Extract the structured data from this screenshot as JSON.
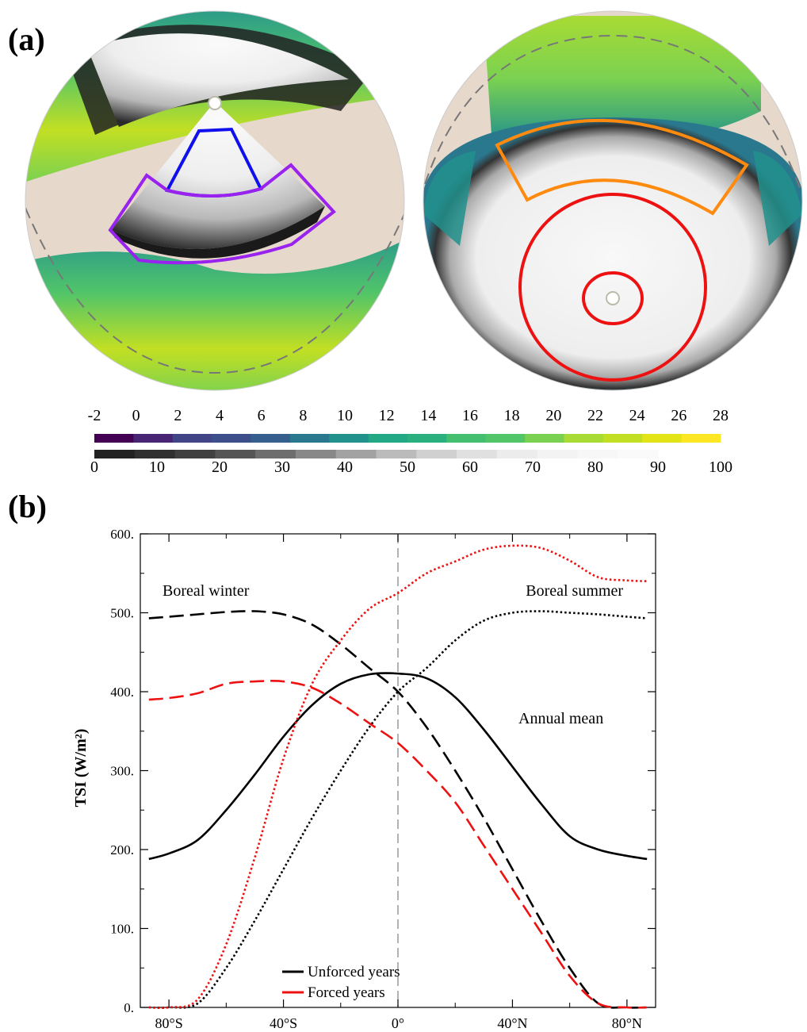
{
  "panel_a": {
    "label": "(a)",
    "colorbar_top": {
      "labels": [
        "-2",
        "0",
        "2",
        "4",
        "6",
        "8",
        "10",
        "12",
        "14",
        "16",
        "18",
        "20",
        "22",
        "24",
        "26",
        "28"
      ],
      "colors": [
        "#440154",
        "#482475",
        "#414487",
        "#3d4f8a",
        "#355f8d",
        "#2a788e",
        "#21918c",
        "#22a884",
        "#2ab07f",
        "#44bf70",
        "#52c569",
        "#7ad151",
        "#a8db34",
        "#c2df23",
        "#e2e418",
        "#fde725"
      ]
    },
    "colorbar_bottom": {
      "labels": [
        "0",
        "10",
        "20",
        "30",
        "40",
        "50",
        "60",
        "70",
        "80",
        "90",
        "100"
      ],
      "colors": [
        "#222222",
        "#303030",
        "#404040",
        "#555555",
        "#6e6e6e",
        "#888888",
        "#a2a2a2",
        "#bbbbbb",
        "#d0d0d0",
        "#e0e0e0",
        "#ececec",
        "#f3f3f3",
        "#f7f7f7",
        "#fafafa"
      ]
    },
    "land_color": "#e6d8cb",
    "box_colors": {
      "blue": "#1010ee",
      "purple": "#9922ee",
      "orange": "#ff8a10",
      "red": "#ee1111"
    }
  },
  "panel_b": {
    "label": "(b)",
    "annotations": {
      "winter": "Boreal winter",
      "summer": "Boreal summer",
      "annual": "Annual mean"
    },
    "legend": [
      {
        "label": "Unforced years",
        "color": "#000000"
      },
      {
        "label": "Forced years",
        "color": "#ee1111"
      }
    ]
  },
  "chart_data": {
    "type": "line",
    "title": "",
    "xlabel": "",
    "ylabel": "TSI (W/m²)",
    "xlim": [
      -90,
      90
    ],
    "ylim": [
      0,
      600
    ],
    "x_ticks": [
      -80,
      -40,
      0,
      40,
      80
    ],
    "x_tick_labels": [
      "80°S",
      "40°S",
      "0°",
      "40°N",
      "80°N"
    ],
    "y_ticks": [
      0,
      100,
      200,
      300,
      400,
      500,
      600
    ],
    "y_tick_labels": [
      "0.",
      "100.",
      "200.",
      "300.",
      "400.",
      "500.",
      "600."
    ],
    "x": [
      -87,
      -80,
      -70,
      -60,
      -50,
      -40,
      -30,
      -20,
      -10,
      0,
      10,
      20,
      30,
      40,
      50,
      60,
      70,
      80,
      87
    ],
    "series": [
      {
        "name": "Unforced years",
        "season": "Annual mean",
        "color": "#000000",
        "style": "solid",
        "values": [
          188,
          195,
          212,
          250,
          295,
          343,
          383,
          410,
          422,
          423,
          417,
          393,
          352,
          305,
          258,
          217,
          200,
          192,
          188
        ]
      },
      {
        "name": "Unforced years",
        "season": "Boreal winter",
        "color": "#000000",
        "style": "dashed",
        "values": [
          493,
          495,
          498,
          501,
          502,
          498,
          485,
          460,
          430,
          400,
          355,
          300,
          240,
          175,
          110,
          50,
          5,
          0,
          0
        ]
      },
      {
        "name": "Unforced years",
        "season": "Boreal summer",
        "color": "#000000",
        "style": "dotted",
        "values": [
          0,
          0,
          5,
          50,
          110,
          175,
          240,
          300,
          355,
          400,
          430,
          465,
          490,
          500,
          502,
          500,
          498,
          495,
          493
        ]
      },
      {
        "name": "Forced years",
        "season": "Boreal winter",
        "color": "#ee1111",
        "style": "dashed",
        "values": [
          390,
          392,
          398,
          410,
          413,
          413,
          405,
          385,
          360,
          335,
          300,
          260,
          205,
          150,
          95,
          40,
          5,
          0,
          0
        ]
      },
      {
        "name": "Forced years",
        "season": "Boreal summer",
        "color": "#ee1111",
        "style": "dotted",
        "values": [
          0,
          0,
          10,
          80,
          190,
          315,
          410,
          465,
          505,
          525,
          550,
          565,
          580,
          585,
          582,
          566,
          545,
          541,
          540
        ]
      }
    ],
    "reference_line": {
      "x": 0,
      "style": "dashed",
      "color": "#999999"
    }
  }
}
